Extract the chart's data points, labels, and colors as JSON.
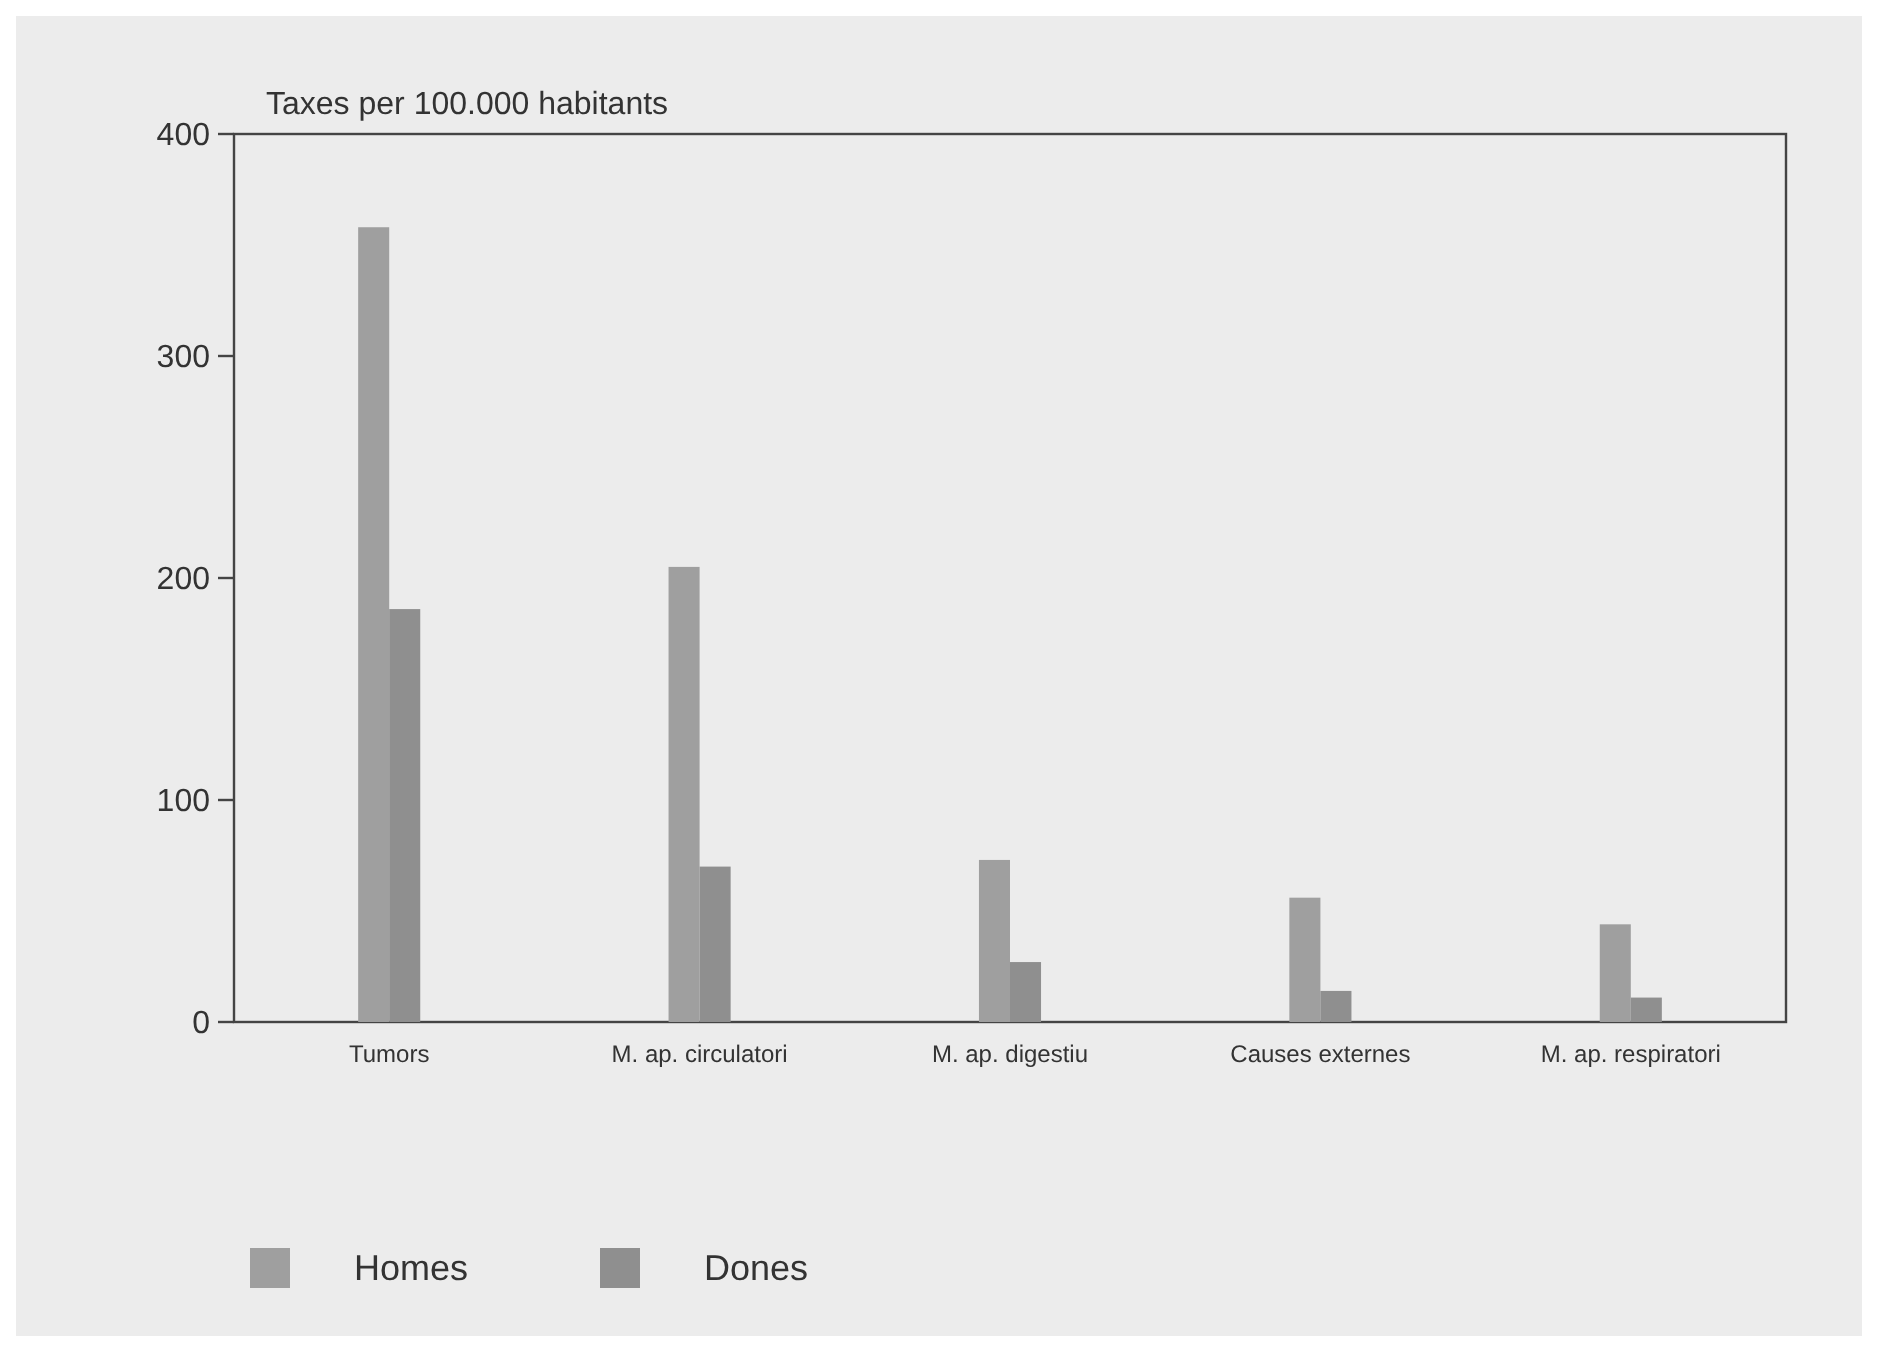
{
  "chart_data": {
    "type": "bar",
    "ylabel": "Taxes per 100.000 habitants",
    "categories": [
      "Tumors",
      "M. ap. circulatori",
      "M. ap. digestiu",
      "Causes externes",
      "M. ap. respiratori"
    ],
    "series": [
      {
        "name": "Homes",
        "color": "#9f9f9f",
        "values": [
          358,
          205,
          73,
          56,
          44
        ]
      },
      {
        "name": "Dones",
        "color": "#8f8f8f",
        "values": [
          186,
          70,
          27,
          14,
          11
        ]
      }
    ],
    "ylim": [
      0,
      400
    ],
    "yticks": [
      0,
      100,
      200,
      300,
      400
    ],
    "grid": false,
    "legend": "bottom left"
  }
}
